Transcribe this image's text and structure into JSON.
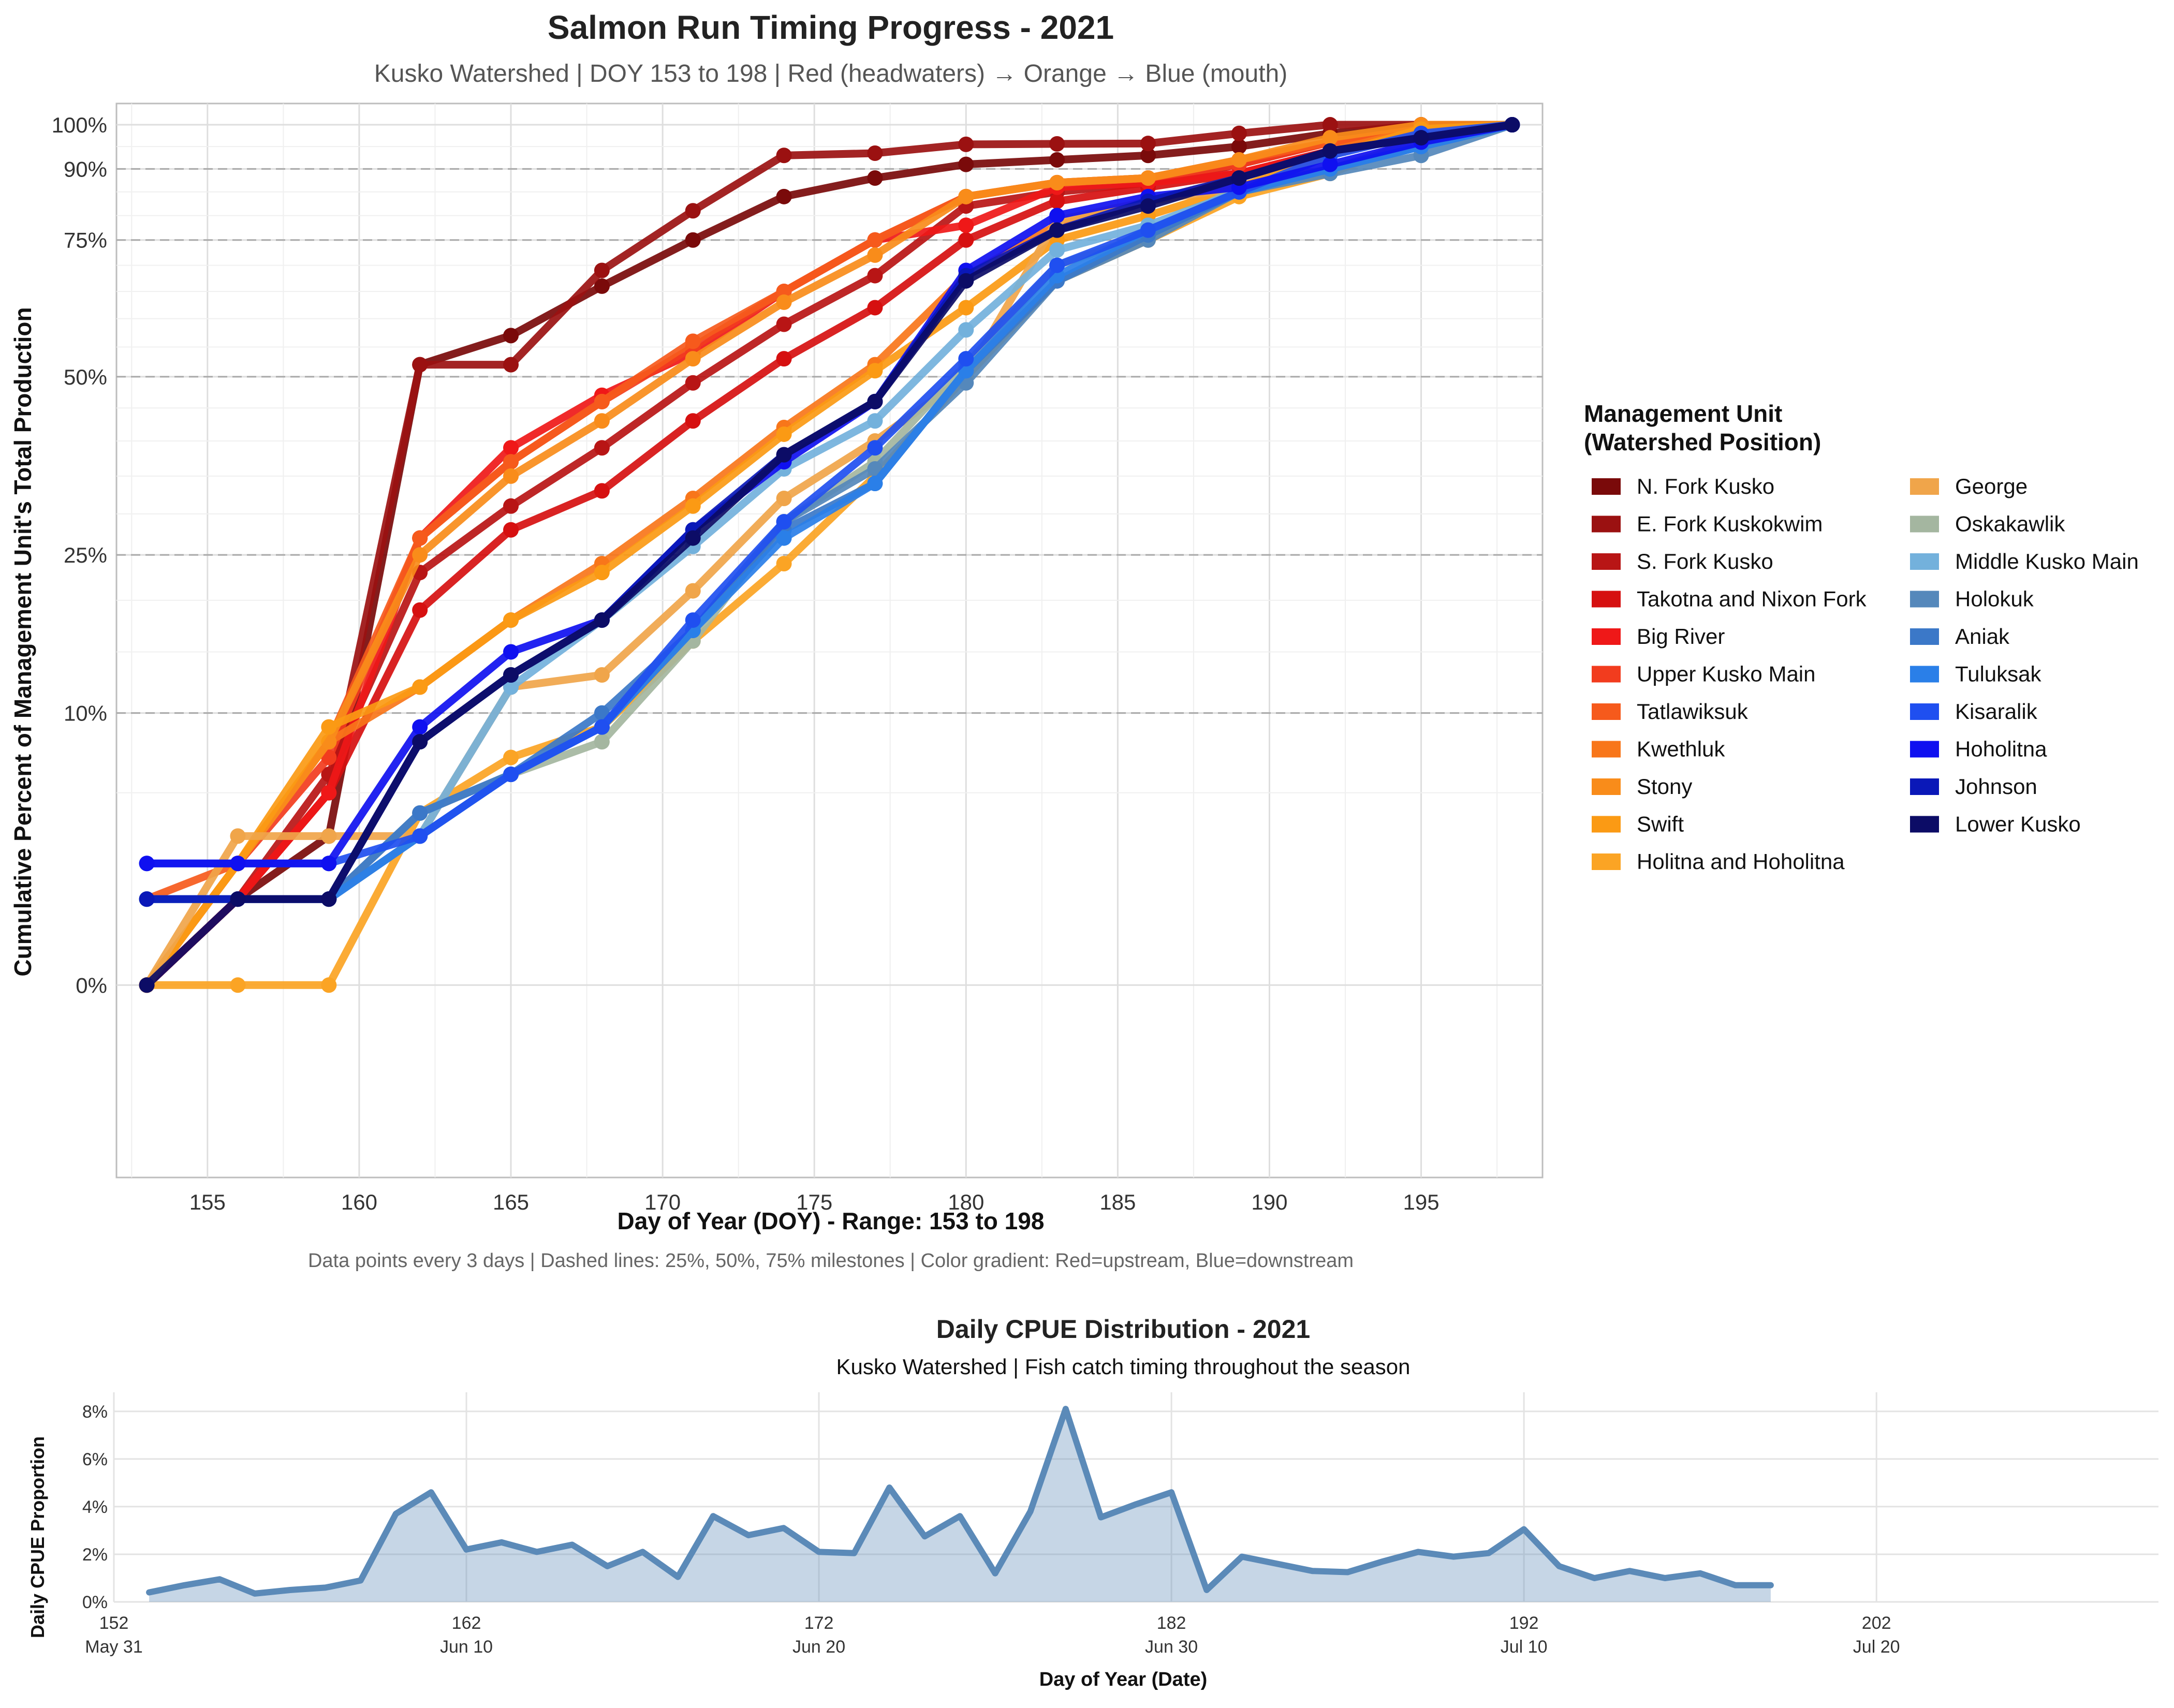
{
  "chart_data": [
    {
      "type": "line",
      "title": "Salmon Run Timing Progress - 2021",
      "subtitle": "Kusko Watershed | DOY 153 to 198 | Red (headwaters) → Orange → Blue (mouth)",
      "xlabel": "Day of Year (DOY) - Range: 153 to 198",
      "ylabel": "Cumulative Percent of Management Unit's Total Production",
      "caption": "Data points every 3 days | Dashed lines: 25%, 50%, 75% milestones | Color gradient: Red=upstream, Blue=downstream",
      "xlim": [
        152,
        199
      ],
      "ylim": [
        -5,
        105
      ],
      "y_scale": "sqrt",
      "x_ticks": [
        155,
        160,
        165,
        170,
        175,
        180,
        185,
        190,
        195
      ],
      "y_ticks": [
        0,
        10,
        25,
        50,
        75,
        90,
        100
      ],
      "y_tick_labels": [
        "0%",
        "10%",
        "25%",
        "50%",
        "75%",
        "90%",
        "100%"
      ],
      "milestones": [
        25,
        50,
        75
      ],
      "grid": true,
      "legend_title_line1": "Management Unit",
      "legend_title_line2": "(Watershed Position)",
      "legend_position": "right",
      "x": [
        153,
        156,
        159,
        162,
        165,
        168,
        171,
        174,
        177,
        180,
        183,
        186,
        189,
        192,
        195,
        198
      ],
      "series": [
        {
          "name": "N. Fork Kusko",
          "color": "#7a0a0a",
          "values": [
            0,
            1,
            3,
            52,
            57,
            66,
            75,
            84,
            88,
            91,
            92,
            93,
            95,
            98,
            100,
            100
          ]
        },
        {
          "name": "E. Fork Kuskokwim",
          "color": "#9b1111",
          "values": [
            0,
            1,
            5,
            52,
            52,
            69,
            81,
            93,
            93.5,
            95.5,
            95.6,
            95.7,
            98,
            100,
            100,
            100
          ]
        },
        {
          "name": "S. Fork Kusko",
          "color": "#b81515",
          "values": [
            0,
            1,
            6,
            23,
            31,
            39,
            49,
            59,
            68,
            82,
            85,
            87,
            91,
            96,
            98,
            100
          ]
        },
        {
          "name": "Takotna and Nixon Fork",
          "color": "#d61010",
          "values": [
            0,
            1,
            5,
            19,
            28,
            33,
            43,
            53,
            62,
            75,
            83,
            86,
            89,
            94,
            98,
            100
          ]
        },
        {
          "name": "Big River",
          "color": "#ef1818",
          "values": [
            0,
            1,
            5,
            27,
            39,
            47,
            54,
            65,
            75,
            78,
            86,
            87,
            89,
            94,
            98,
            100
          ]
        },
        {
          "name": "Upper Kusko Main",
          "color": "#f23c1e",
          "values": [
            0,
            2,
            7,
            27,
            37,
            46,
            55,
            65,
            75,
            84,
            87,
            88,
            91,
            96,
            99,
            100
          ]
        },
        {
          "name": "Tatlawiksuk",
          "color": "#f65a1c",
          "values": [
            1,
            2,
            8,
            27,
            37,
            46,
            56,
            65,
            75,
            84,
            87,
            88,
            92,
            96,
            99,
            100
          ]
        },
        {
          "name": "Kwethluk",
          "color": "#f8761a",
          "values": [
            0,
            2,
            8,
            12,
            18,
            24,
            32,
            42,
            52,
            68,
            78,
            83,
            88,
            94,
            99,
            100
          ]
        },
        {
          "name": "Stony",
          "color": "#f98c1a",
          "values": [
            0,
            2,
            8,
            25,
            35,
            43,
            53,
            63,
            72,
            84,
            87,
            88,
            92,
            97,
            100,
            100
          ]
        },
        {
          "name": "Swift",
          "color": "#fb9a14",
          "values": [
            0,
            2,
            9,
            12,
            18,
            23,
            31,
            41,
            51,
            62,
            75,
            80,
            86,
            93,
            99,
            100
          ]
        },
        {
          "name": "Holitna and Hoholitna",
          "color": "#fba424",
          "values": [
            0,
            0,
            0,
            4,
            7,
            9,
            16,
            24,
            35,
            50,
            67,
            75,
            84,
            89,
            97,
            100
          ]
        },
        {
          "name": "George",
          "color": "#f0a54a",
          "values": [
            0,
            3,
            3,
            3,
            12,
            13,
            21,
            32,
            40,
            50,
            79,
            83,
            86,
            90,
            96,
            100
          ]
        },
        {
          "name": "Oskakawlik",
          "color": "#a4b6a0",
          "values": [
            1,
            1,
            1,
            4,
            6,
            8,
            16,
            29,
            37,
            52,
            70,
            76,
            86,
            90,
            96,
            100
          ]
        },
        {
          "name": "Middle Kusko Main",
          "color": "#73b1dc",
          "values": [
            1,
            1,
            1,
            3,
            12,
            18,
            26,
            36,
            43,
            58,
            73,
            78,
            85,
            90,
            95,
            100
          ]
        },
        {
          "name": "Holokuk",
          "color": "#5588bb",
          "values": [
            1,
            1,
            1,
            3,
            6,
            9,
            17,
            29,
            36,
            49,
            67,
            75,
            85,
            89,
            93,
            100
          ]
        },
        {
          "name": "Aniak",
          "color": "#3b78c8",
          "values": [
            1,
            1,
            1,
            4,
            6,
            10,
            17,
            28,
            34,
            51,
            67,
            76,
            85,
            90,
            95,
            100
          ]
        },
        {
          "name": "Tuluksak",
          "color": "#2a7fe8",
          "values": [
            1,
            1,
            1,
            3,
            6,
            9,
            17,
            27,
            34,
            51,
            68,
            77,
            85,
            90,
            95,
            100
          ]
        },
        {
          "name": "Kisaralik",
          "color": "#1f4ff0",
          "values": [
            2,
            2,
            2,
            3,
            6,
            9,
            18,
            29,
            39,
            53,
            70,
            77,
            85,
            93,
            98,
            100
          ]
        },
        {
          "name": "Hoholitna",
          "color": "#0f10f0",
          "values": [
            2,
            2,
            2,
            9,
            15,
            18,
            28,
            37,
            46,
            69,
            80,
            84,
            86,
            91,
            96,
            100
          ]
        },
        {
          "name": "Johnson",
          "color": "#0a18b8",
          "values": [
            1,
            1,
            1,
            8,
            13,
            18,
            28,
            38,
            46,
            68,
            77,
            83,
            88,
            94,
            97,
            100
          ]
        },
        {
          "name": "Lower Kusko",
          "color": "#0c0c66",
          "values": [
            0,
            1,
            1,
            8,
            13,
            18,
            27,
            38,
            46,
            67,
            77,
            82,
            88,
            94,
            97,
            100
          ]
        }
      ]
    },
    {
      "type": "area",
      "title": "Daily CPUE Distribution - 2021",
      "subtitle": "Kusko Watershed | Fish catch timing throughout the season",
      "xlabel": "Day of Year (Date)",
      "ylabel": "Daily CPUE Proportion",
      "xlim": [
        152,
        210
      ],
      "ylim": [
        0,
        8.8
      ],
      "grid": true,
      "color": "#5b8ab8",
      "x_ticks": [
        152,
        162,
        172,
        182,
        192,
        202
      ],
      "x_tick_labels": [
        "152",
        "162",
        "172",
        "182",
        "192",
        "202"
      ],
      "x_tick_dates": [
        "May 31",
        "Jun 10",
        "Jun 20",
        "Jun 30",
        "Jul 10",
        "Jul 20"
      ],
      "y_ticks": [
        0,
        2,
        4,
        6,
        8
      ],
      "y_tick_labels": [
        "0%",
        "2%",
        "4%",
        "6%",
        "8%"
      ],
      "x": [
        153,
        154,
        155,
        156,
        157,
        158,
        159,
        160,
        161,
        162,
        163,
        164,
        165,
        166,
        167,
        168,
        169,
        170,
        171,
        172,
        173,
        174,
        175,
        176,
        177,
        178,
        179,
        180,
        181,
        182,
        183,
        184,
        185,
        186,
        187,
        188,
        189,
        190,
        191,
        192,
        193,
        194,
        195,
        196,
        197,
        198,
        199
      ],
      "values": [
        0.4,
        0.7,
        0.95,
        0.35,
        0.5,
        0.6,
        0.9,
        3.7,
        4.6,
        2.2,
        2.5,
        2.1,
        2.4,
        1.5,
        2.1,
        1.05,
        3.6,
        2.8,
        3.1,
        2.1,
        2.05,
        4.8,
        2.75,
        3.6,
        1.2,
        3.8,
        8.1,
        3.55,
        4.1,
        4.6,
        0.5,
        1.9,
        1.6,
        1.3,
        1.25,
        1.7,
        2.1,
        1.9,
        2.05,
        3.05,
        1.5,
        1.0,
        1.3,
        1.0,
        1.2,
        0.7,
        0.7
      ]
    }
  ]
}
